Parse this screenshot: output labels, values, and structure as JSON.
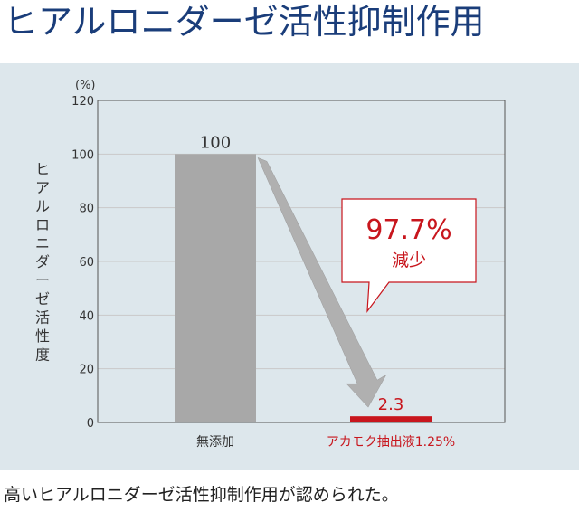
{
  "header": {
    "title": "ヒアルロニダーゼ活性抑制作用"
  },
  "caption": "高いヒアルロニダーゼ活性抑制作用が認められた。",
  "colors": {
    "title": "#1a3d7a",
    "panel": "#dde7ec",
    "bar_control": "#a8a8a8",
    "bar_extract": "#c8161d",
    "arrow": "#b0b0b0",
    "callout": "#c8161d"
  },
  "callout": {
    "value": "97.7%",
    "label": "減少"
  },
  "chart_data": {
    "type": "bar",
    "title": "",
    "unit": "(%)",
    "ylabel": "ヒアルロニダーゼ活性度",
    "ylim": [
      0,
      120
    ],
    "yticks": [
      0,
      20,
      40,
      60,
      80,
      100,
      120
    ],
    "grid": true,
    "categories": [
      "無添加",
      "アカモク抽出液1.25%"
    ],
    "values": [
      100,
      2.3
    ],
    "value_labels": [
      "100",
      "2.3"
    ]
  }
}
